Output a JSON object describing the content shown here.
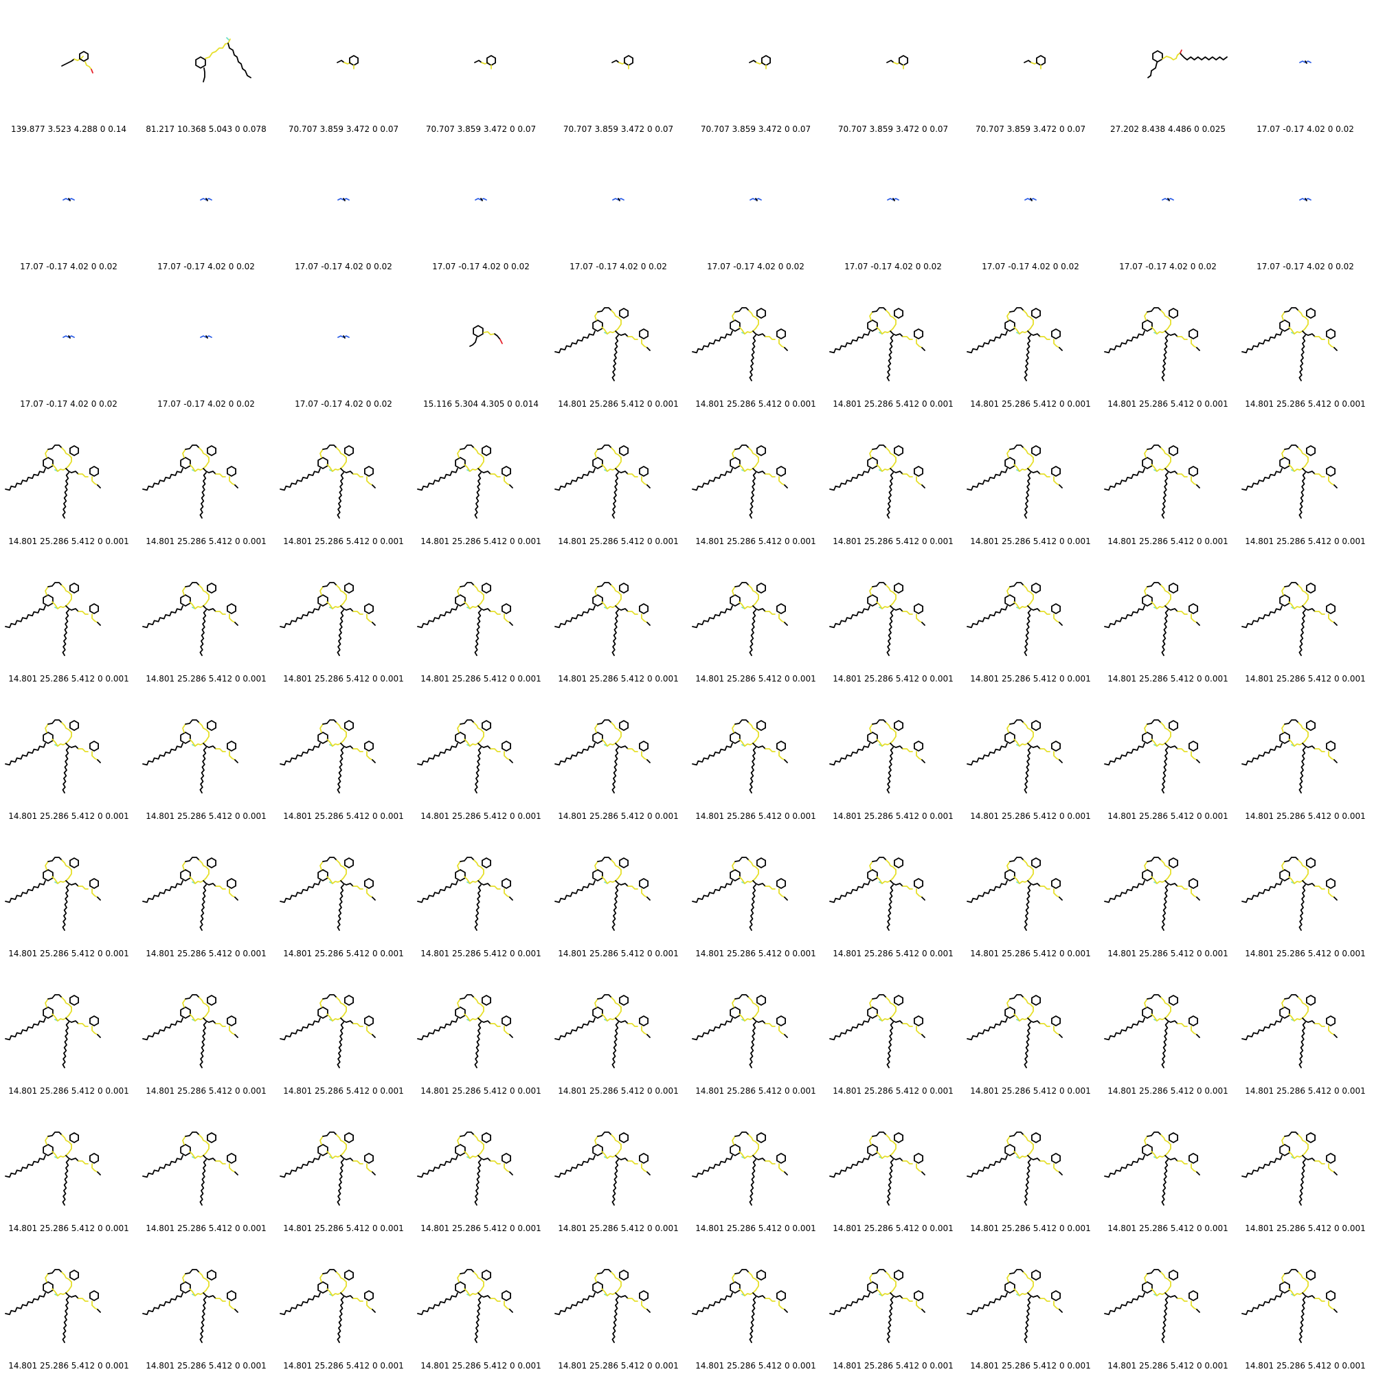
{
  "colors": {
    "carbon": "#000000",
    "highlight": "#e6df2a",
    "nitrogen": "#2a5ce6",
    "oxygen": "#e6202a",
    "fluorine": "#6fe0c8"
  },
  "molecule_types": {
    "A": "benzyl-ether-aldehyde",
    "B": "branched-benzyl-alkyl-chain",
    "C": "small-benzyl-fragment",
    "D": "long-chain-aldehyde-fragment",
    "E": "tiny-nitrogen-fragment",
    "F": "benzyl-oxo-fragment",
    "G": "large-branched-tri-aryl"
  },
  "cells": [
    {
      "mol": "A",
      "label": "139.877 3.523 4.288 0 0.14"
    },
    {
      "mol": "B",
      "label": "81.217 10.368 5.043 0 0.078"
    },
    {
      "mol": "C",
      "label": "70.707 3.859 3.472 0 0.07"
    },
    {
      "mol": "C",
      "label": "70.707 3.859 3.472 0 0.07"
    },
    {
      "mol": "C",
      "label": "70.707 3.859 3.472 0 0.07"
    },
    {
      "mol": "C",
      "label": "70.707 3.859 3.472 0 0.07"
    },
    {
      "mol": "C",
      "label": "70.707 3.859 3.472 0 0.07"
    },
    {
      "mol": "C",
      "label": "70.707 3.859 3.472 0 0.07"
    },
    {
      "mol": "D",
      "label": "27.202 8.438 4.486 0 0.025"
    },
    {
      "mol": "E",
      "label": "17.07 -0.17 4.02 0 0.02"
    },
    {
      "mol": "E",
      "label": "17.07 -0.17 4.02 0 0.02"
    },
    {
      "mol": "E",
      "label": "17.07 -0.17 4.02 0 0.02"
    },
    {
      "mol": "E",
      "label": "17.07 -0.17 4.02 0 0.02"
    },
    {
      "mol": "E",
      "label": "17.07 -0.17 4.02 0 0.02"
    },
    {
      "mol": "E",
      "label": "17.07 -0.17 4.02 0 0.02"
    },
    {
      "mol": "E",
      "label": "17.07 -0.17 4.02 0 0.02"
    },
    {
      "mol": "E",
      "label": "17.07 -0.17 4.02 0 0.02"
    },
    {
      "mol": "E",
      "label": "17.07 -0.17 4.02 0 0.02"
    },
    {
      "mol": "E",
      "label": "17.07 -0.17 4.02 0 0.02"
    },
    {
      "mol": "E",
      "label": "17.07 -0.17 4.02 0 0.02"
    },
    {
      "mol": "E",
      "label": "17.07 -0.17 4.02 0 0.02"
    },
    {
      "mol": "E",
      "label": "17.07 -0.17 4.02 0 0.02"
    },
    {
      "mol": "E",
      "label": "17.07 -0.17 4.02 0 0.02"
    },
    {
      "mol": "F",
      "label": "15.116 5.304 4.305 0 0.014"
    },
    {
      "mol": "G",
      "label": "14.801 25.286 5.412 0 0.001"
    },
    {
      "mol": "G",
      "label": "14.801 25.286 5.412 0 0.001"
    },
    {
      "mol": "G",
      "label": "14.801 25.286 5.412 0 0.001"
    },
    {
      "mol": "G",
      "label": "14.801 25.286 5.412 0 0.001"
    },
    {
      "mol": "G",
      "label": "14.801 25.286 5.412 0 0.001"
    },
    {
      "mol": "G",
      "label": "14.801 25.286 5.412 0 0.001"
    },
    {
      "mol": "G",
      "label": "14.801 25.286 5.412 0 0.001"
    },
    {
      "mol": "G",
      "label": "14.801 25.286 5.412 0 0.001"
    },
    {
      "mol": "G",
      "label": "14.801 25.286 5.412 0 0.001"
    },
    {
      "mol": "G",
      "label": "14.801 25.286 5.412 0 0.001"
    },
    {
      "mol": "G",
      "label": "14.801 25.286 5.412 0 0.001"
    },
    {
      "mol": "G",
      "label": "14.801 25.286 5.412 0 0.001"
    },
    {
      "mol": "G",
      "label": "14.801 25.286 5.412 0 0.001"
    },
    {
      "mol": "G",
      "label": "14.801 25.286 5.412 0 0.001"
    },
    {
      "mol": "G",
      "label": "14.801 25.286 5.412 0 0.001"
    },
    {
      "mol": "G",
      "label": "14.801 25.286 5.412 0 0.001"
    },
    {
      "mol": "G",
      "label": "14.801 25.286 5.412 0 0.001"
    },
    {
      "mol": "G",
      "label": "14.801 25.286 5.412 0 0.001"
    },
    {
      "mol": "G",
      "label": "14.801 25.286 5.412 0 0.001"
    },
    {
      "mol": "G",
      "label": "14.801 25.286 5.412 0 0.001"
    },
    {
      "mol": "G",
      "label": "14.801 25.286 5.412 0 0.001"
    },
    {
      "mol": "G",
      "label": "14.801 25.286 5.412 0 0.001"
    },
    {
      "mol": "G",
      "label": "14.801 25.286 5.412 0 0.001"
    },
    {
      "mol": "G",
      "label": "14.801 25.286 5.412 0 0.001"
    },
    {
      "mol": "G",
      "label": "14.801 25.286 5.412 0 0.001"
    },
    {
      "mol": "G",
      "label": "14.801 25.286 5.412 0 0.001"
    },
    {
      "mol": "G",
      "label": "14.801 25.286 5.412 0 0.001"
    },
    {
      "mol": "G",
      "label": "14.801 25.286 5.412 0 0.001"
    },
    {
      "mol": "G",
      "label": "14.801 25.286 5.412 0 0.001"
    },
    {
      "mol": "G",
      "label": "14.801 25.286 5.412 0 0.001"
    },
    {
      "mol": "G",
      "label": "14.801 25.286 5.412 0 0.001"
    },
    {
      "mol": "G",
      "label": "14.801 25.286 5.412 0 0.001"
    },
    {
      "mol": "G",
      "label": "14.801 25.286 5.412 0 0.001"
    },
    {
      "mol": "G",
      "label": "14.801 25.286 5.412 0 0.001"
    },
    {
      "mol": "G",
      "label": "14.801 25.286 5.412 0 0.001"
    },
    {
      "mol": "G",
      "label": "14.801 25.286 5.412 0 0.001"
    },
    {
      "mol": "G",
      "label": "14.801 25.286 5.412 0 0.001"
    },
    {
      "mol": "G",
      "label": "14.801 25.286 5.412 0 0.001"
    },
    {
      "mol": "G",
      "label": "14.801 25.286 5.412 0 0.001"
    },
    {
      "mol": "G",
      "label": "14.801 25.286 5.412 0 0.001"
    },
    {
      "mol": "G",
      "label": "14.801 25.286 5.412 0 0.001"
    },
    {
      "mol": "G",
      "label": "14.801 25.286 5.412 0 0.001"
    },
    {
      "mol": "G",
      "label": "14.801 25.286 5.412 0 0.001"
    },
    {
      "mol": "G",
      "label": "14.801 25.286 5.412 0 0.001"
    },
    {
      "mol": "G",
      "label": "14.801 25.286 5.412 0 0.001"
    },
    {
      "mol": "G",
      "label": "14.801 25.286 5.412 0 0.001"
    },
    {
      "mol": "G",
      "label": "14.801 25.286 5.412 0 0.001"
    },
    {
      "mol": "G",
      "label": "14.801 25.286 5.412 0 0.001"
    },
    {
      "mol": "G",
      "label": "14.801 25.286 5.412 0 0.001"
    },
    {
      "mol": "G",
      "label": "14.801 25.286 5.412 0 0.001"
    },
    {
      "mol": "G",
      "label": "14.801 25.286 5.412 0 0.001"
    },
    {
      "mol": "G",
      "label": "14.801 25.286 5.412 0 0.001"
    },
    {
      "mol": "G",
      "label": "14.801 25.286 5.412 0 0.001"
    },
    {
      "mol": "G",
      "label": "14.801 25.286 5.412 0 0.001"
    },
    {
      "mol": "G",
      "label": "14.801 25.286 5.412 0 0.001"
    },
    {
      "mol": "G",
      "label": "14.801 25.286 5.412 0 0.001"
    },
    {
      "mol": "G",
      "label": "14.801 25.286 5.412 0 0.001"
    },
    {
      "mol": "G",
      "label": "14.801 25.286 5.412 0 0.001"
    },
    {
      "mol": "G",
      "label": "14.801 25.286 5.412 0 0.001"
    },
    {
      "mol": "G",
      "label": "14.801 25.286 5.412 0 0.001"
    },
    {
      "mol": "G",
      "label": "14.801 25.286 5.412 0 0.001"
    },
    {
      "mol": "G",
      "label": "14.801 25.286 5.412 0 0.001"
    },
    {
      "mol": "G",
      "label": "14.801 25.286 5.412 0 0.001"
    },
    {
      "mol": "G",
      "label": "14.801 25.286 5.412 0 0.001"
    },
    {
      "mol": "G",
      "label": "14.801 25.286 5.412 0 0.001"
    },
    {
      "mol": "G",
      "label": "14.801 25.286 5.412 0 0.001"
    },
    {
      "mol": "G",
      "label": "14.801 25.286 5.412 0 0.001"
    },
    {
      "mol": "G",
      "label": "14.801 25.286 5.412 0 0.001"
    },
    {
      "mol": "G",
      "label": "14.801 25.286 5.412 0 0.001"
    },
    {
      "mol": "G",
      "label": "14.801 25.286 5.412 0 0.001"
    },
    {
      "mol": "G",
      "label": "14.801 25.286 5.412 0 0.001"
    },
    {
      "mol": "G",
      "label": "14.801 25.286 5.412 0 0.001"
    },
    {
      "mol": "G",
      "label": "14.801 25.286 5.412 0 0.001"
    },
    {
      "mol": "G",
      "label": "14.801 25.286 5.412 0 0.001"
    },
    {
      "mol": "G",
      "label": "14.801 25.286 5.412 0 0.001"
    },
    {
      "mol": "G",
      "label": "14.801 25.286 5.412 0 0.001"
    }
  ]
}
